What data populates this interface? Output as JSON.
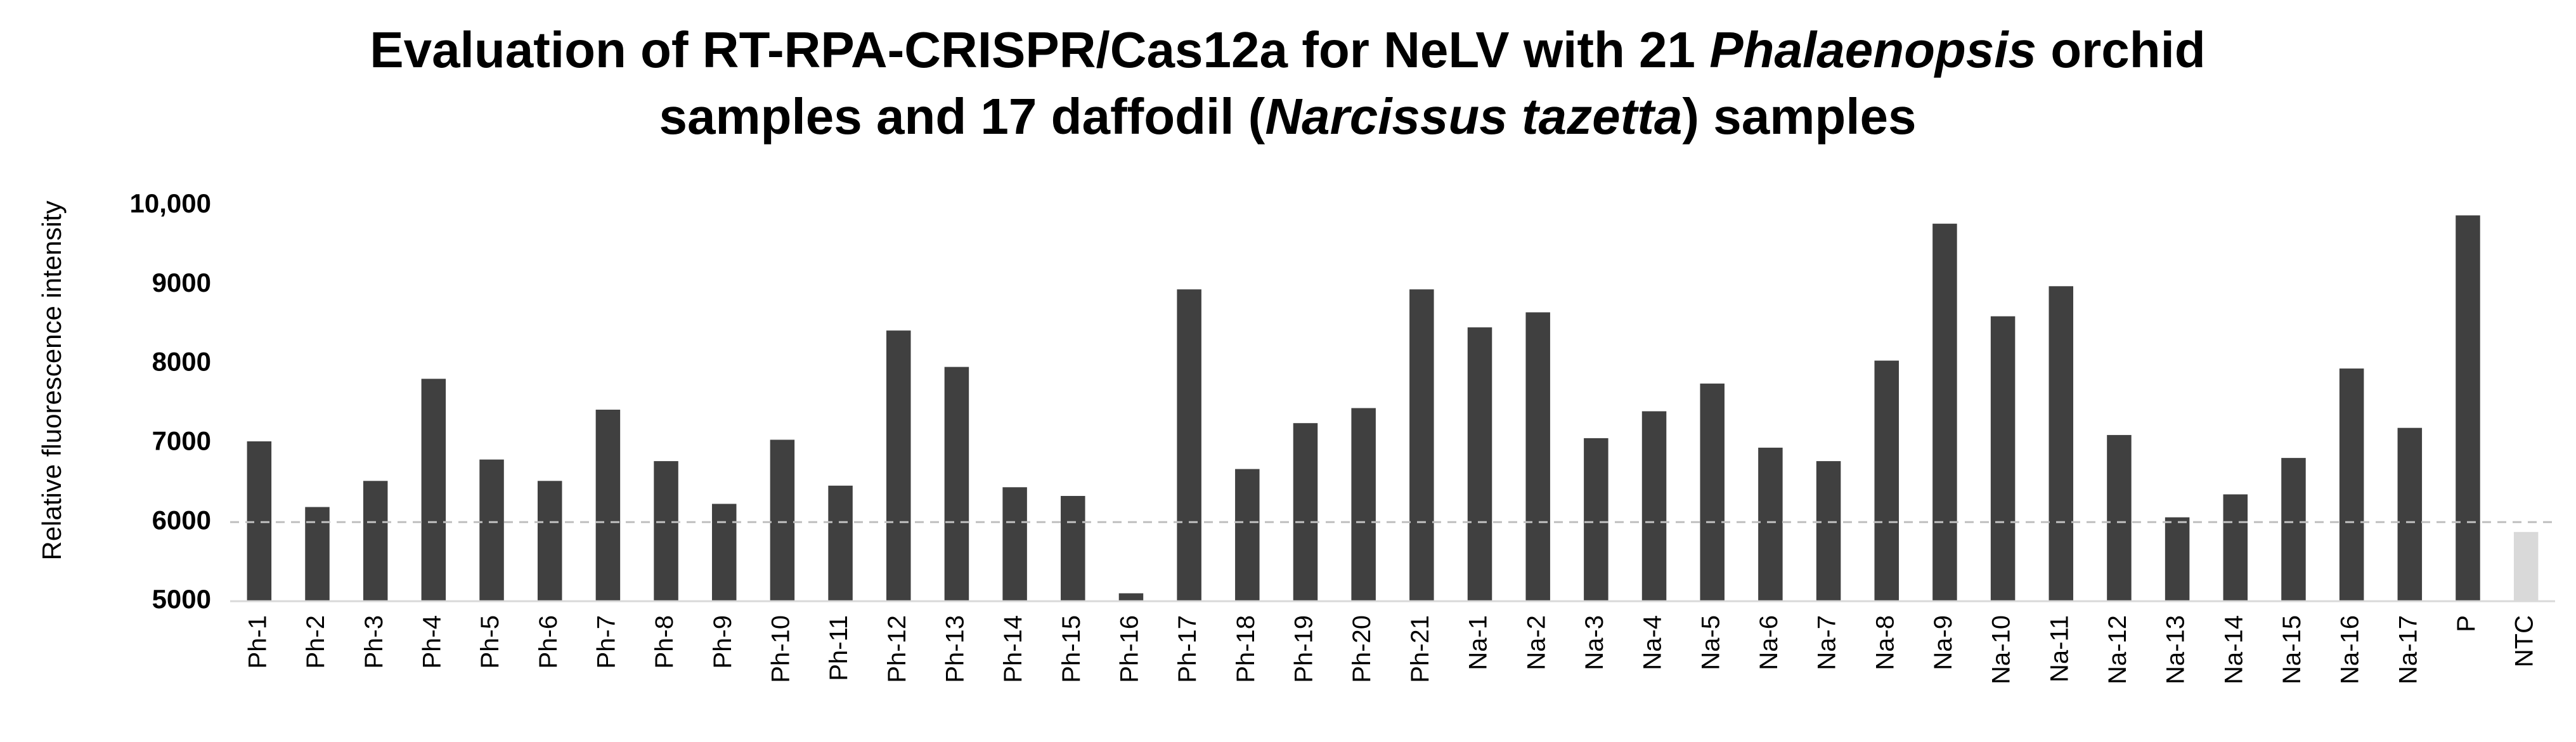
{
  "chart_data": {
    "type": "bar",
    "title_lines": [
      [
        {
          "text": "Evaluation of RT-RPA-CRISPR/Cas12a for NeLV with 21 ",
          "italic": false
        },
        {
          "text": "Phalaenopsis",
          "italic": true
        },
        {
          "text": " orchid",
          "italic": false
        }
      ],
      [
        {
          "text": "samples and 17 daffodil (",
          "italic": false
        },
        {
          "text": "Narcissus tazetta",
          "italic": true
        },
        {
          "text": ") samples",
          "italic": false
        }
      ]
    ],
    "y_label": "Relative fluorescence intensity",
    "categories": [
      "Ph-1",
      "Ph-2",
      "Ph-3",
      "Ph-4",
      "Ph-5",
      "Ph-6",
      "Ph-7",
      "Ph-8",
      "Ph-9",
      "Ph-10",
      "Ph-11",
      "Ph-12",
      "Ph-13",
      "Ph-14",
      "Ph-15",
      "Ph-16",
      "Ph-17",
      "Ph-18",
      "Ph-19",
      "Ph-20",
      "Ph-21",
      "Na-1",
      "Na-2",
      "Na-3",
      "Na-4",
      "Na-5",
      "Na-6",
      "Na-7",
      "Na-8",
      "Na-9",
      "Na-10",
      "Na-11",
      "Na-12",
      "Na-13",
      "Na-14",
      "Na-15",
      "Na-16",
      "Na-17",
      "P",
      "NTC"
    ],
    "values": [
      7020,
      6190,
      6520,
      7810,
      6790,
      6520,
      7420,
      6770,
      6230,
      7040,
      6460,
      8420,
      7960,
      6440,
      6330,
      5100,
      8940,
      6670,
      7250,
      7440,
      8940,
      8460,
      8650,
      7060,
      7400,
      7750,
      6940,
      6770,
      8040,
      9770,
      8600,
      8980,
      7100,
      6060,
      6350,
      6810,
      7940,
      7190,
      9875,
      5875
    ],
    "colors": [
      "#404040",
      "#404040",
      "#404040",
      "#404040",
      "#404040",
      "#404040",
      "#404040",
      "#404040",
      "#404040",
      "#404040",
      "#404040",
      "#404040",
      "#404040",
      "#404040",
      "#404040",
      "#404040",
      "#404040",
      "#404040",
      "#404040",
      "#404040",
      "#404040",
      "#404040",
      "#404040",
      "#404040",
      "#404040",
      "#404040",
      "#404040",
      "#404040",
      "#404040",
      "#404040",
      "#404040",
      "#404040",
      "#404040",
      "#404040",
      "#404040",
      "#404040",
      "#404040",
      "#404040",
      "#404040",
      "#d9d9d9"
    ],
    "ylim": [
      5000,
      10000
    ],
    "yticks": [
      5000,
      6000,
      7000,
      8000,
      9000,
      {
        "value": 10000,
        "label": "10,000"
      }
    ],
    "reference_line": 6000,
    "grid": false
  }
}
